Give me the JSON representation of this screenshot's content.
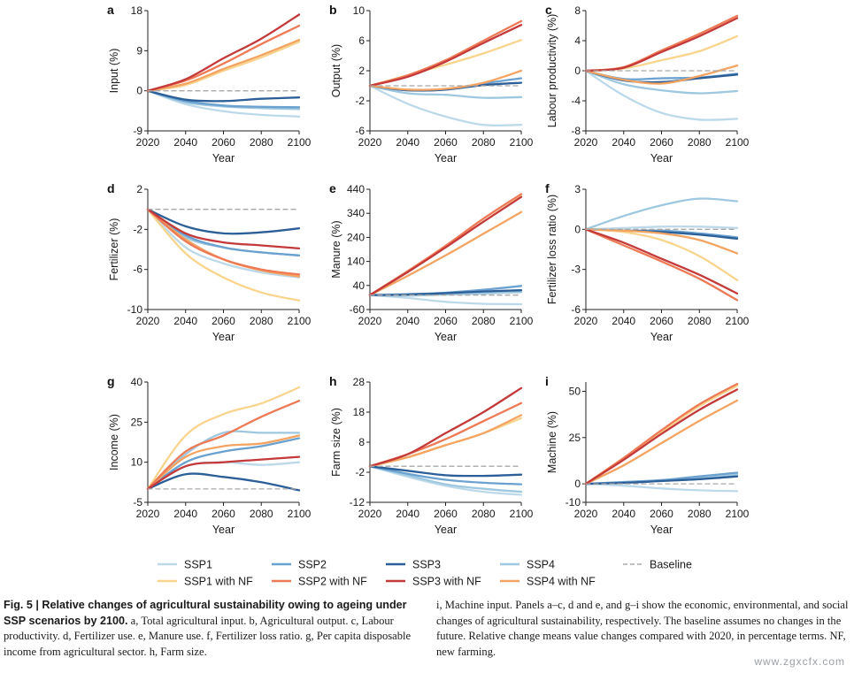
{
  "figure": {
    "x_axis_label": "Year",
    "x_ticks": [
      "2020",
      "2040",
      "2060",
      "2080",
      "2100"
    ],
    "x_range": [
      2020,
      2100
    ]
  },
  "legend": [
    {
      "key": "SSP1",
      "label": "SSP1",
      "color": "#bcd9ea"
    },
    {
      "key": "SSP1_NF",
      "label": "SSP1 with NF",
      "color": "#f8d48c"
    },
    {
      "key": "SSP2",
      "label": "SSP2",
      "color": "#6aa1cf"
    },
    {
      "key": "SSP2_NF",
      "label": "SSP2 with NF",
      "color": "#ee7a55"
    },
    {
      "key": "SSP3",
      "label": "SSP3",
      "color": "#2c5f97"
    },
    {
      "key": "SSP3_NF",
      "label": "SSP3 with NF",
      "color": "#c43a3a"
    },
    {
      "key": "SSP4",
      "label": "SSP4",
      "color": "#9ec8df"
    },
    {
      "key": "SSP4_NF",
      "label": "SSP4 with NF",
      "color": "#f3a462"
    },
    {
      "key": "Baseline",
      "label": "Baseline",
      "color": "#a8a8a8"
    }
  ],
  "chart_data": [
    {
      "panel": "a",
      "type": "line",
      "ylabel": "Input (%)",
      "xlabel": "Year",
      "x": [
        2020,
        2040,
        2060,
        2080,
        2100
      ],
      "ylim": [
        -9,
        18
      ],
      "yticks": [
        "18",
        "9",
        "0",
        "-9"
      ],
      "series": [
        {
          "name": "SSP1",
          "values": [
            0,
            -3,
            -4.6,
            -5.4,
            -5.8
          ]
        },
        {
          "name": "SSP1 with NF",
          "values": [
            0,
            1.3,
            4.5,
            7.5,
            11.0
          ]
        },
        {
          "name": "SSP2",
          "values": [
            0,
            -2.3,
            -3.3,
            -3.6,
            -3.7
          ]
        },
        {
          "name": "SSP2 with NF",
          "values": [
            0,
            2.3,
            6.1,
            10.5,
            14.6
          ]
        },
        {
          "name": "SSP3",
          "values": [
            0,
            -2.0,
            -2.3,
            -1.8,
            -1.5
          ]
        },
        {
          "name": "SSP3 with NF",
          "values": [
            0,
            2.6,
            7.3,
            11.7,
            17.1
          ]
        },
        {
          "name": "SSP4",
          "values": [
            0,
            -2.6,
            -3.5,
            -3.9,
            -4.1
          ]
        },
        {
          "name": "SSP4 with NF",
          "values": [
            0,
            1.6,
            4.9,
            8.0,
            11.4
          ]
        },
        {
          "name": "Baseline",
          "values": [
            0,
            0,
            0,
            0,
            0
          ]
        }
      ]
    },
    {
      "panel": "b",
      "type": "line",
      "ylabel": "Output (%)",
      "xlabel": "Year",
      "x": [
        2020,
        2040,
        2060,
        2080,
        2100
      ],
      "ylim": [
        -6,
        10
      ],
      "yticks": [
        "10",
        "6",
        "2",
        "-2",
        "-6"
      ],
      "series": [
        {
          "name": "SSP1",
          "values": [
            0,
            -2.4,
            -4.1,
            -5.2,
            -5.2
          ]
        },
        {
          "name": "SSP1 with NF",
          "values": [
            0,
            1.4,
            2.8,
            4.3,
            6.1
          ]
        },
        {
          "name": "SSP2",
          "values": [
            0,
            -0.6,
            -0.5,
            0.3,
            1.0
          ]
        },
        {
          "name": "SSP2 with NF",
          "values": [
            0,
            1.4,
            3.4,
            6.0,
            8.6
          ]
        },
        {
          "name": "SSP3",
          "values": [
            0,
            -0.6,
            -0.5,
            0.1,
            0.4
          ]
        },
        {
          "name": "SSP3 with NF",
          "values": [
            0,
            1.2,
            3.2,
            5.7,
            8.1
          ]
        },
        {
          "name": "SSP4",
          "values": [
            0,
            -1.0,
            -1.2,
            -1.6,
            -1.5
          ]
        },
        {
          "name": "SSP4 with NF",
          "values": [
            0,
            -0.5,
            -0.4,
            0.4,
            2.0
          ]
        },
        {
          "name": "Baseline",
          "values": [
            0,
            0,
            0,
            0,
            0
          ]
        }
      ]
    },
    {
      "panel": "c",
      "type": "line",
      "ylabel": "Labour productivity (%)",
      "xlabel": "Year",
      "x": [
        2020,
        2040,
        2060,
        2080,
        2100
      ],
      "ylim": [
        -8,
        8
      ],
      "yticks": [
        "8",
        "4",
        "0",
        "-4",
        "-8"
      ],
      "series": [
        {
          "name": "SSP1",
          "values": [
            0,
            -3.3,
            -5.6,
            -6.5,
            -6.4
          ]
        },
        {
          "name": "SSP1 with NF",
          "values": [
            0,
            0.3,
            1.4,
            2.6,
            4.6
          ]
        },
        {
          "name": "SSP2",
          "values": [
            0,
            -1.1,
            -1.0,
            -0.9,
            -0.4
          ]
        },
        {
          "name": "SSP2 with NF",
          "values": [
            0,
            0.5,
            2.7,
            4.9,
            7.3
          ]
        },
        {
          "name": "SSP3",
          "values": [
            0,
            -1.3,
            -1.5,
            -1.0,
            -0.5
          ]
        },
        {
          "name": "SSP3 with NF",
          "values": [
            0,
            0.4,
            2.5,
            4.6,
            7.0
          ]
        },
        {
          "name": "SSP4",
          "values": [
            0,
            -1.8,
            -2.6,
            -3.0,
            -2.7
          ]
        },
        {
          "name": "SSP4 with NF",
          "values": [
            0,
            -1.2,
            -1.7,
            -0.7,
            0.7
          ]
        },
        {
          "name": "Baseline",
          "values": [
            0,
            0,
            0,
            0,
            0
          ]
        }
      ]
    },
    {
      "panel": "d",
      "type": "line",
      "ylabel": "Fertilizer (%)",
      "xlabel": "Year",
      "x": [
        2020,
        2040,
        2060,
        2080,
        2100
      ],
      "ylim": [
        -10,
        2
      ],
      "yticks": [
        "2",
        "-2",
        "-6",
        "-10"
      ],
      "series": [
        {
          "name": "SSP1",
          "values": [
            0,
            -3.8,
            -5.4,
            -6.3,
            -6.8
          ]
        },
        {
          "name": "SSP1 with NF",
          "values": [
            0,
            -4.4,
            -6.8,
            -8.3,
            -9.1
          ]
        },
        {
          "name": "SSP2",
          "values": [
            0,
            -2.6,
            -3.8,
            -4.3,
            -4.6
          ]
        },
        {
          "name": "SSP2 with NF",
          "values": [
            0,
            -3.2,
            -5.0,
            -6.0,
            -6.5
          ]
        },
        {
          "name": "SSP3",
          "values": [
            0,
            -1.7,
            -2.4,
            -2.3,
            -1.9
          ]
        },
        {
          "name": "SSP3 with NF",
          "values": [
            0,
            -2.4,
            -3.3,
            -3.6,
            -3.9
          ]
        },
        {
          "name": "SSP4",
          "values": [
            0,
            -2.8,
            -3.8,
            -4.3,
            -4.6
          ]
        },
        {
          "name": "SSP4 with NF",
          "values": [
            0,
            -3.0,
            -5.0,
            -6.1,
            -6.7
          ]
        },
        {
          "name": "Baseline",
          "values": [
            0,
            0,
            0,
            0,
            0
          ]
        }
      ]
    },
    {
      "panel": "e",
      "type": "line",
      "ylabel": "Manure (%)",
      "xlabel": "Year",
      "x": [
        2020,
        2040,
        2060,
        2080,
        2100
      ],
      "ylim": [
        -60,
        440
      ],
      "yticks": [
        "440",
        "340",
        "240",
        "140",
        "40",
        "-60"
      ],
      "series": [
        {
          "name": "SSP1",
          "values": [
            0,
            -12,
            -28,
            -36,
            -38
          ]
        },
        {
          "name": "SSP1 with NF",
          "values": [
            0,
            98,
            200,
            305,
            410
          ]
        },
        {
          "name": "SSP2",
          "values": [
            0,
            4,
            10,
            22,
            38
          ]
        },
        {
          "name": "SSP2 with NF",
          "values": [
            0,
            100,
            205,
            318,
            420
          ]
        },
        {
          "name": "SSP3",
          "values": [
            0,
            2,
            8,
            15,
            20
          ]
        },
        {
          "name": "SSP3 with NF",
          "values": [
            0,
            96,
            198,
            305,
            408
          ]
        },
        {
          "name": "SSP4",
          "values": [
            0,
            -2,
            2,
            7,
            12
          ]
        },
        {
          "name": "SSP4 with NF",
          "values": [
            0,
            80,
            165,
            255,
            345
          ]
        },
        {
          "name": "Baseline",
          "values": [
            0,
            0,
            0,
            0,
            0
          ]
        }
      ]
    },
    {
      "panel": "f",
      "type": "line",
      "ylabel": "Fertilizer loss ratio (%)",
      "xlabel": "Year",
      "x": [
        2020,
        2040,
        2060,
        2080,
        2100
      ],
      "ylim": [
        -6,
        3
      ],
      "yticks": [
        "3",
        "0",
        "-3",
        "-6"
      ],
      "series": [
        {
          "name": "SSP1",
          "values": [
            0,
            0.1,
            0.2,
            0.2,
            0.1
          ]
        },
        {
          "name": "SSP1 with NF",
          "values": [
            0,
            -0.2,
            -0.8,
            -2.0,
            -3.8
          ]
        },
        {
          "name": "SSP2",
          "values": [
            0,
            -0.1,
            -0.1,
            -0.3,
            -0.6
          ]
        },
        {
          "name": "SSP2 with NF",
          "values": [
            0,
            -1.2,
            -2.4,
            -3.7,
            -5.3
          ]
        },
        {
          "name": "SSP3",
          "values": [
            0,
            -0.1,
            -0.2,
            -0.4,
            -0.7
          ]
        },
        {
          "name": "SSP3 with NF",
          "values": [
            0,
            -1.0,
            -2.2,
            -3.4,
            -4.8
          ]
        },
        {
          "name": "SSP4",
          "values": [
            0,
            1.0,
            1.8,
            2.3,
            2.1
          ]
        },
        {
          "name": "SSP4 with NF",
          "values": [
            0,
            -0.1,
            -0.3,
            -0.8,
            -1.8
          ]
        },
        {
          "name": "Baseline",
          "values": [
            0,
            0,
            0,
            0,
            0
          ]
        }
      ]
    },
    {
      "panel": "g",
      "type": "line",
      "ylabel": "Income (%)",
      "xlabel": "Year",
      "x": [
        2020,
        2040,
        2060,
        2080,
        2100
      ],
      "ylim": [
        -5,
        40
      ],
      "yticks": [
        "40",
        "25",
        "10",
        "-5"
      ],
      "series": [
        {
          "name": "SSP1",
          "values": [
            0,
            8.5,
            10.0,
            9.0,
            10.0
          ]
        },
        {
          "name": "SSP1 with NF",
          "values": [
            0,
            20,
            28,
            32,
            38
          ]
        },
        {
          "name": "SSP2",
          "values": [
            0,
            10,
            14,
            16,
            19
          ]
        },
        {
          "name": "SSP2 with NF",
          "values": [
            0,
            14,
            20,
            27,
            33
          ]
        },
        {
          "name": "SSP3",
          "values": [
            0,
            5.5,
            4.5,
            2.5,
            -0.5
          ]
        },
        {
          "name": "SSP3 with NF",
          "values": [
            0,
            8.5,
            10.0,
            11.0,
            12.0
          ]
        },
        {
          "name": "SSP4",
          "values": [
            0,
            13,
            21,
            21,
            21
          ]
        },
        {
          "name": "SSP4 with NF",
          "values": [
            0,
            12,
            16,
            17,
            20
          ]
        },
        {
          "name": "Baseline",
          "values": [
            0,
            0,
            0,
            0,
            0
          ]
        }
      ]
    },
    {
      "panel": "h",
      "type": "line",
      "ylabel": "Farm size (%)",
      "xlabel": "Year",
      "x": [
        2020,
        2040,
        2060,
        2080,
        2100
      ],
      "ylim": [
        -12,
        28
      ],
      "yticks": [
        "28",
        "18",
        "8",
        "-2",
        "-12"
      ],
      "series": [
        {
          "name": "SSP1",
          "values": [
            0,
            -3.5,
            -6.5,
            -8.5,
            -9.5
          ]
        },
        {
          "name": "SSP1 with NF",
          "values": [
            0,
            3,
            7,
            11,
            16
          ]
        },
        {
          "name": "SSP2",
          "values": [
            0,
            -2.5,
            -4.5,
            -5.5,
            -6.0
          ]
        },
        {
          "name": "SSP2 with NF",
          "values": [
            0,
            4,
            9,
            15,
            21
          ]
        },
        {
          "name": "SSP3",
          "values": [
            0,
            -1.5,
            -3.0,
            -3.2,
            -2.8
          ]
        },
        {
          "name": "SSP3 with NF",
          "values": [
            0,
            4,
            11,
            18,
            26
          ]
        },
        {
          "name": "SSP4",
          "values": [
            0,
            -3,
            -6,
            -7.5,
            -8.5
          ]
        },
        {
          "name": "SSP4 with NF",
          "values": [
            0,
            3,
            7,
            11,
            17
          ]
        },
        {
          "name": "Baseline",
          "values": [
            0,
            0,
            0,
            0,
            0
          ]
        }
      ]
    },
    {
      "panel": "i",
      "type": "line",
      "ylabel": "Machine (%)",
      "xlabel": "Year",
      "x": [
        2020,
        2040,
        2060,
        2080,
        2100
      ],
      "ylim": [
        -10,
        55
      ],
      "yticks": [
        "50",
        "25",
        "0",
        "-10"
      ],
      "series": [
        {
          "name": "SSP1",
          "values": [
            0,
            -1,
            -2.5,
            -3.5,
            -4
          ]
        },
        {
          "name": "SSP1 with NF",
          "values": [
            0,
            14,
            28,
            42,
            53
          ]
        },
        {
          "name": "SSP2",
          "values": [
            0,
            1,
            2,
            4,
            6
          ]
        },
        {
          "name": "SSP2 with NF",
          "values": [
            0,
            14,
            29,
            43,
            54
          ]
        },
        {
          "name": "SSP3",
          "values": [
            0,
            0.5,
            1.5,
            2.5,
            4
          ]
        },
        {
          "name": "SSP3 with NF",
          "values": [
            0,
            13,
            27,
            40,
            51
          ]
        },
        {
          "name": "SSP4",
          "values": [
            0,
            0.5,
            1.5,
            3,
            5
          ]
        },
        {
          "name": "SSP4 with NF",
          "values": [
            0,
            10,
            22,
            34,
            45
          ]
        },
        {
          "name": "Baseline",
          "values": [
            0,
            0,
            0,
            0,
            0
          ]
        }
      ]
    }
  ],
  "caption": {
    "fig_label": "Fig. 5 | Relative changes of agricultural sustainability owing to ageing under SSP scenarios by 2100.",
    "left_body": "a, Total agricultural input. b, Agricultural output. c, Labour productivity. d, Fertilizer use. e, Manure use. f, Fertilizer loss ratio. g, Per capita disposable income from agricultural sector. h, Farm size.",
    "right_body": "i, Machine input. Panels a–c, d and e, and g–i show the economic, environmental, and social changes of agricultural sustainability, respectively. The baseline assumes no changes in the future. Relative change means value changes compared with 2020, in percentage terms. NF, new farming."
  },
  "watermark": "www.zgxcfx.com"
}
